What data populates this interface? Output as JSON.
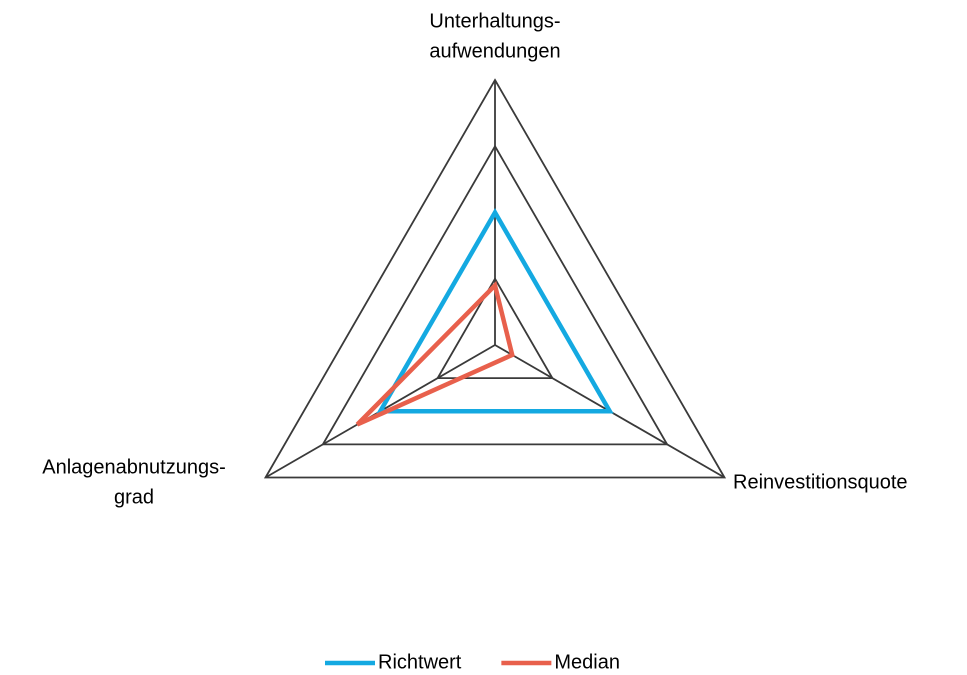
{
  "chart_data": {
    "type": "radar",
    "categories": [
      [
        "Unterhaltungs-",
        "aufwendungen"
      ],
      [
        "Reinvestitionsquote"
      ],
      [
        "Anlagenabnutzungs-",
        "grad"
      ]
    ],
    "series": [
      {
        "name": "Richtwert",
        "color": "#14a9e1",
        "values": [
          2,
          2,
          2
        ]
      },
      {
        "name": "Median",
        "color": "#e8604c",
        "values": [
          0.9,
          0.3,
          2.4
        ]
      }
    ],
    "rlim": [
      0,
      4
    ],
    "rticks": [
      1,
      2,
      3,
      4
    ],
    "grid": true,
    "legend": "bottom"
  }
}
